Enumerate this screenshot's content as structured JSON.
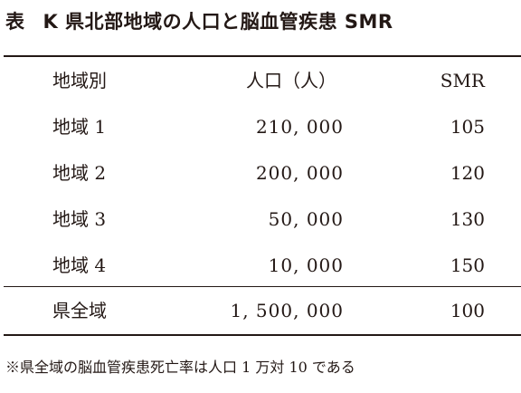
{
  "title": {
    "label": "表",
    "text": "K 県北部地域の人口と脳血管疾患 SMR"
  },
  "table": {
    "headers": [
      "地域別",
      "人口（人）",
      "SMR"
    ],
    "rows": [
      {
        "region": "地域 1",
        "population": "210, 000",
        "smr": "105"
      },
      {
        "region": "地域 2",
        "population": "200, 000",
        "smr": "120"
      },
      {
        "region": "地域 3",
        "population": "50, 000",
        "smr": "130"
      },
      {
        "region": "地域 4",
        "population": "10, 000",
        "smr": "150"
      }
    ],
    "total": {
      "region": "県全域",
      "population": "1, 500, 000",
      "smr": "100"
    }
  },
  "footnote": "※県全域の脳血管疾患死亡率は人口 1 万対 10 である"
}
